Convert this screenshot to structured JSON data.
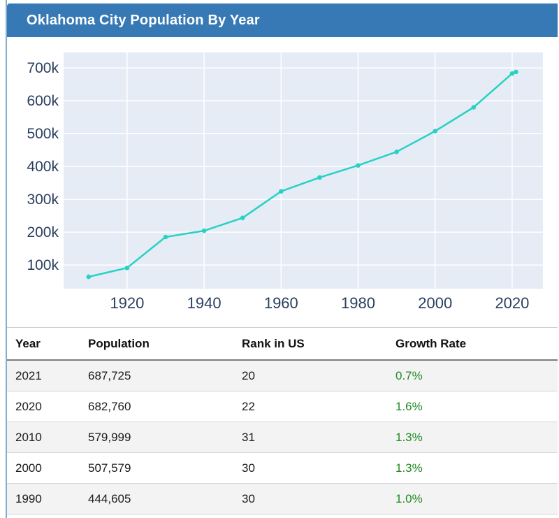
{
  "header": {
    "title": "Oklahoma City Population By Year"
  },
  "colors": {
    "header_bg": "#3779b5",
    "header_text": "#ffffff",
    "card_border": "#84accf",
    "plot_bg": "#e5ecf6",
    "grid": "#ffffff",
    "tick_text": "#2a3f5f",
    "line": "#29d1c4",
    "growth_positive": "#228b22",
    "row_stripe": "#f3f3f3",
    "table_border": "#d6d6d6"
  },
  "chart_data": {
    "type": "line",
    "title": "",
    "xlabel": "",
    "ylabel": "",
    "legend_position": "none",
    "grid": true,
    "series": [
      {
        "name": "Population",
        "x": [
          1910,
          1920,
          1930,
          1940,
          1950,
          1960,
          1970,
          1980,
          1990,
          2000,
          2010,
          2020,
          2021
        ],
        "y": [
          64205,
          91295,
          185389,
          204424,
          243504,
          324253,
          366481,
          403213,
          444605,
          507579,
          579999,
          682760,
          687725
        ]
      }
    ],
    "x_ticks": {
      "values": [
        1920,
        1940,
        1960,
        1980,
        2000,
        2020
      ],
      "labels": [
        "1920",
        "1940",
        "1960",
        "1980",
        "2000",
        "2020"
      ]
    },
    "y_ticks": {
      "values": [
        100000,
        200000,
        300000,
        400000,
        500000,
        600000,
        700000
      ],
      "labels": [
        "100k",
        "200k",
        "300k",
        "400k",
        "500k",
        "600k",
        "700k"
      ]
    },
    "x_range": [
      1903.5,
      2028
    ],
    "y_range": [
      28000,
      747000
    ]
  },
  "table": {
    "columns": [
      "Year",
      "Population",
      "Rank in US",
      "Growth Rate"
    ],
    "rows": [
      {
        "year": "2021",
        "population": "687,725",
        "rank": "20",
        "growth": "0.7%"
      },
      {
        "year": "2020",
        "population": "682,760",
        "rank": "22",
        "growth": "1.6%"
      },
      {
        "year": "2010",
        "population": "579,999",
        "rank": "31",
        "growth": "1.3%"
      },
      {
        "year": "2000",
        "population": "507,579",
        "rank": "30",
        "growth": "1.3%"
      },
      {
        "year": "1990",
        "population": "444,605",
        "rank": "30",
        "growth": "1.0%"
      }
    ]
  }
}
